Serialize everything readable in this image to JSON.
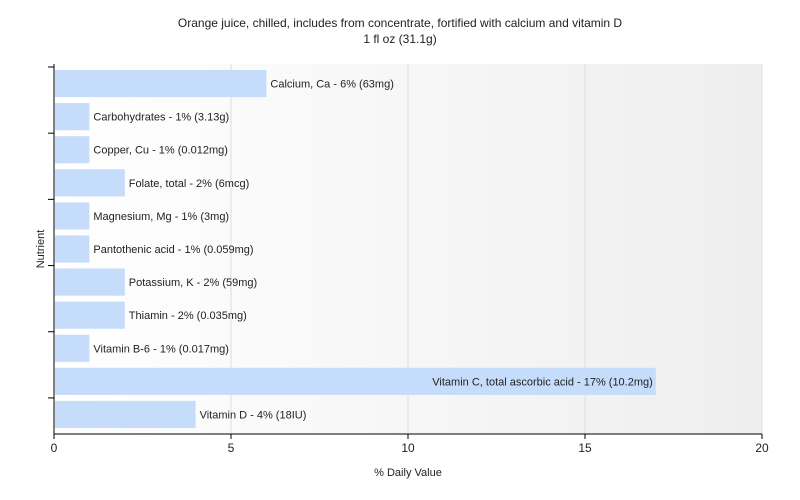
{
  "chart_data": {
    "type": "bar",
    "orientation": "horizontal",
    "title": "Orange juice, chilled, includes from concentrate, fortified with calcium and vitamin D",
    "subtitle": "1 fl oz (31.1g)",
    "xlabel": "% Daily Value",
    "ylabel": "Nutrient",
    "xlim": [
      0,
      20
    ],
    "xticks": [
      0,
      5,
      10,
      15,
      20
    ],
    "grid": true,
    "bar_color": "#c6dcfb",
    "categories": [
      "Calcium, Ca",
      "Carbohydrates",
      "Copper, Cu",
      "Folate, total",
      "Magnesium, Mg",
      "Pantothenic acid",
      "Potassium, K",
      "Thiamin",
      "Vitamin B-6",
      "Vitamin C, total ascorbic acid",
      "Vitamin D"
    ],
    "values": [
      6,
      1,
      1,
      2,
      1,
      1,
      2,
      2,
      1,
      17,
      4
    ],
    "labels": [
      "Calcium, Ca - 6% (63mg)",
      "Carbohydrates - 1% (3.13g)",
      "Copper, Cu - 1% (0.012mg)",
      "Folate, total - 2% (6mcg)",
      "Magnesium, Mg - 1% (3mg)",
      "Pantothenic acid - 1% (0.059mg)",
      "Potassium, K - 2% (59mg)",
      "Thiamin - 2% (0.035mg)",
      "Vitamin B-6 - 1% (0.017mg)",
      "Vitamin C, total ascorbic acid - 17% (10.2mg)",
      "Vitamin D - 4% (18IU)"
    ]
  }
}
